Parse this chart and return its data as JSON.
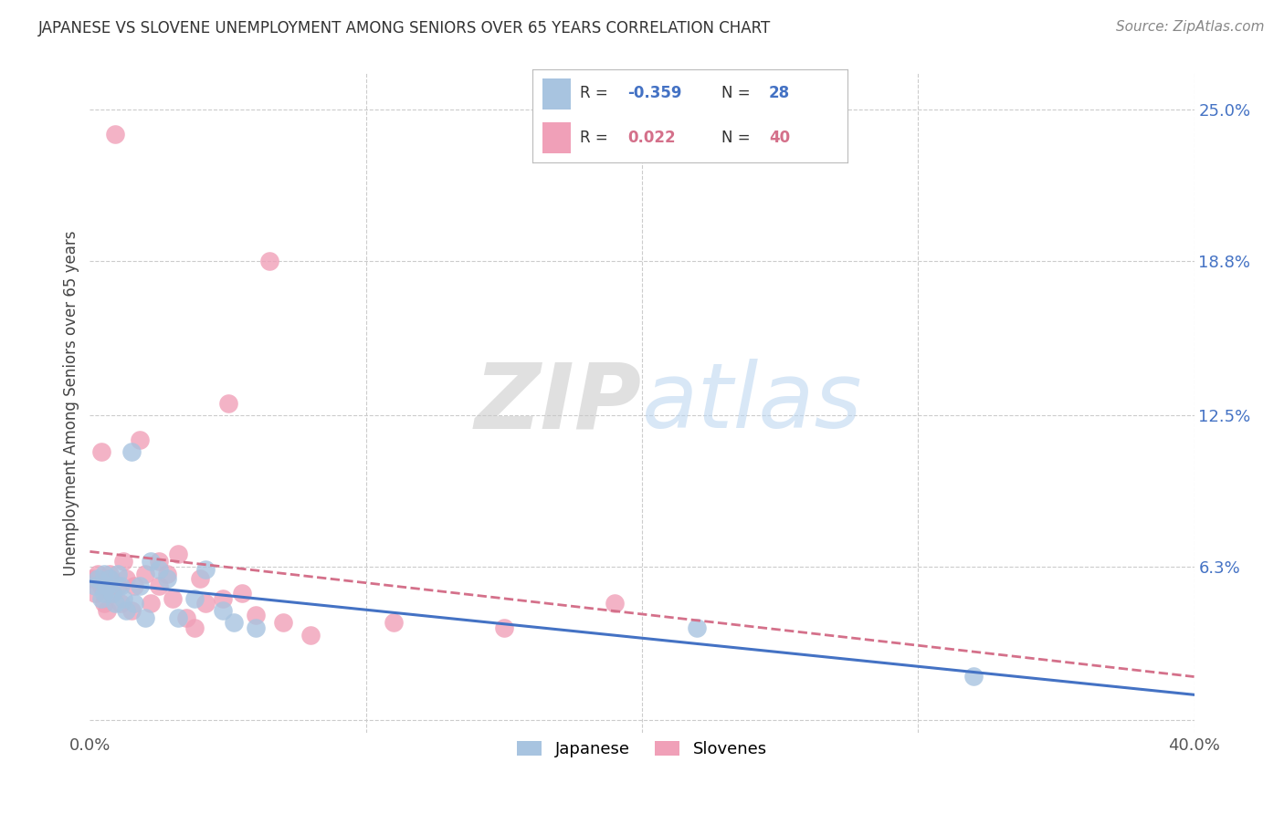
{
  "title": "JAPANESE VS SLOVENE UNEMPLOYMENT AMONG SENIORS OVER 65 YEARS CORRELATION CHART",
  "source": "Source: ZipAtlas.com",
  "ylabel": "Unemployment Among Seniors over 65 years",
  "xlim": [
    0.0,
    0.4
  ],
  "ylim": [
    -0.005,
    0.265
  ],
  "xticks": [
    0.0,
    0.1,
    0.2,
    0.3,
    0.4
  ],
  "xticklabels": [
    "0.0%",
    "",
    "",
    "",
    "40.0%"
  ],
  "ytick_positions": [
    0.0,
    0.063,
    0.125,
    0.188,
    0.25
  ],
  "ytick_labels": [
    "",
    "6.3%",
    "12.5%",
    "18.8%",
    "25.0%"
  ],
  "legend_japanese_R": "-0.359",
  "legend_japanese_N": "28",
  "legend_slovene_R": "0.022",
  "legend_slovene_N": "40",
  "japanese_color": "#a8c4e0",
  "slovene_color": "#f0a0b8",
  "japanese_line_color": "#4472c4",
  "slovene_line_color": "#d4708a",
  "background_color": "#ffffff",
  "grid_color": "#cccccc",
  "japanese_x": [
    0.002,
    0.003,
    0.004,
    0.005,
    0.005,
    0.006,
    0.007,
    0.008,
    0.009,
    0.01,
    0.011,
    0.012,
    0.013,
    0.015,
    0.016,
    0.018,
    0.02,
    0.022,
    0.025,
    0.028,
    0.032,
    0.038,
    0.042,
    0.048,
    0.052,
    0.06,
    0.22,
    0.32
  ],
  "japanese_y": [
    0.055,
    0.058,
    0.05,
    0.06,
    0.052,
    0.055,
    0.058,
    0.052,
    0.048,
    0.06,
    0.055,
    0.05,
    0.045,
    0.11,
    0.048,
    0.055,
    0.042,
    0.065,
    0.062,
    0.058,
    0.042,
    0.05,
    0.062,
    0.045,
    0.04,
    0.038,
    0.038,
    0.018
  ],
  "slovene_x": [
    0.001,
    0.002,
    0.003,
    0.004,
    0.004,
    0.005,
    0.005,
    0.006,
    0.007,
    0.007,
    0.008,
    0.009,
    0.01,
    0.011,
    0.012,
    0.013,
    0.015,
    0.016,
    0.018,
    0.02,
    0.022,
    0.025,
    0.025,
    0.028,
    0.03,
    0.032,
    0.035,
    0.038,
    0.04,
    0.042,
    0.048,
    0.05,
    0.055,
    0.06,
    0.065,
    0.07,
    0.08,
    0.11,
    0.15,
    0.19
  ],
  "slovene_y": [
    0.058,
    0.052,
    0.06,
    0.055,
    0.11,
    0.048,
    0.055,
    0.045,
    0.058,
    0.06,
    0.052,
    0.24,
    0.055,
    0.048,
    0.065,
    0.058,
    0.045,
    0.055,
    0.115,
    0.06,
    0.048,
    0.065,
    0.055,
    0.06,
    0.05,
    0.068,
    0.042,
    0.038,
    0.058,
    0.048,
    0.05,
    0.13,
    0.052,
    0.043,
    0.188,
    0.04,
    0.035,
    0.04,
    0.038,
    0.048
  ]
}
